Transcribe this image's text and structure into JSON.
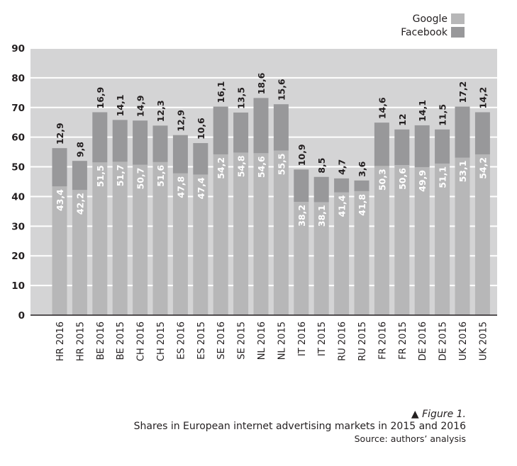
{
  "legend": [
    {
      "label": "Google",
      "color": "#b7b7b8"
    },
    {
      "label": "Facebook",
      "color": "#98989a"
    }
  ],
  "colors": {
    "plot_bg": "#d4d4d5",
    "grid": "#ffffff",
    "google": "#b7b7b8",
    "facebook": "#98989a"
  },
  "caption": {
    "marker": "▲",
    "figure": "Figure 1.",
    "title": "Shares in European internet advertising markets in 2015 and 2016",
    "source": "Source: authors’ analysis"
  },
  "chart_data": {
    "type": "bar",
    "stacked": true,
    "categories": [
      "HR 2016",
      "HR 2015",
      "BE 2016",
      "BE 2015",
      "CH 2016",
      "CH 2015",
      "ES 2016",
      "ES 2015",
      "SE 2016",
      "SE 2015",
      "NL 2016",
      "NL 2015",
      "IT 2016",
      "IT 2015",
      "RU 2016",
      "RU 2015",
      "FR 2016",
      "FR 2015",
      "DE 2016",
      "DE 2015",
      "UK 2016",
      "UK 2015"
    ],
    "series": [
      {
        "name": "Google",
        "values": [
          43.4,
          42.2,
          51.5,
          51.7,
          50.7,
          51.6,
          47.8,
          47.4,
          54.2,
          54.8,
          54.6,
          55.5,
          38.2,
          38.1,
          41.4,
          41.8,
          50.3,
          50.6,
          49.9,
          51.1,
          53.1,
          54.2
        ],
        "labels": [
          "43,4",
          "42,2",
          "51,5",
          "51,7",
          "50,7",
          "51,6",
          "47,8",
          "47,4",
          "54,2",
          "54,8",
          "54,6",
          "55,5",
          "38,2",
          "38,1",
          "41,4",
          "41,8",
          "50,3",
          "50,6",
          "49,9",
          "51,1",
          "53,1",
          "54,2"
        ]
      },
      {
        "name": "Facebook",
        "values": [
          12.9,
          9.8,
          16.9,
          14.1,
          14.9,
          12.3,
          12.9,
          10.6,
          16.1,
          13.5,
          18.6,
          15.6,
          10.9,
          8.5,
          4.7,
          3.6,
          14.6,
          12,
          14.1,
          11.5,
          17.2,
          14.2
        ],
        "labels": [
          "12,9",
          "9,8",
          "16,9",
          "14,1",
          "14,9",
          "12,3",
          "12,9",
          "10,6",
          "16,1",
          "13,5",
          "18,6",
          "15,6",
          "10,9",
          "8,5",
          "4,7",
          "3,6",
          "14,6",
          "12",
          "14,1",
          "11,5",
          "17,2",
          "14,2"
        ]
      }
    ],
    "yticks": [
      "0",
      "10",
      "20",
      "30",
      "40",
      "50",
      "60",
      "70",
      "80",
      "90"
    ],
    "ylim": [
      0,
      90
    ],
    "grid": true,
    "legend_position": "top-right"
  }
}
